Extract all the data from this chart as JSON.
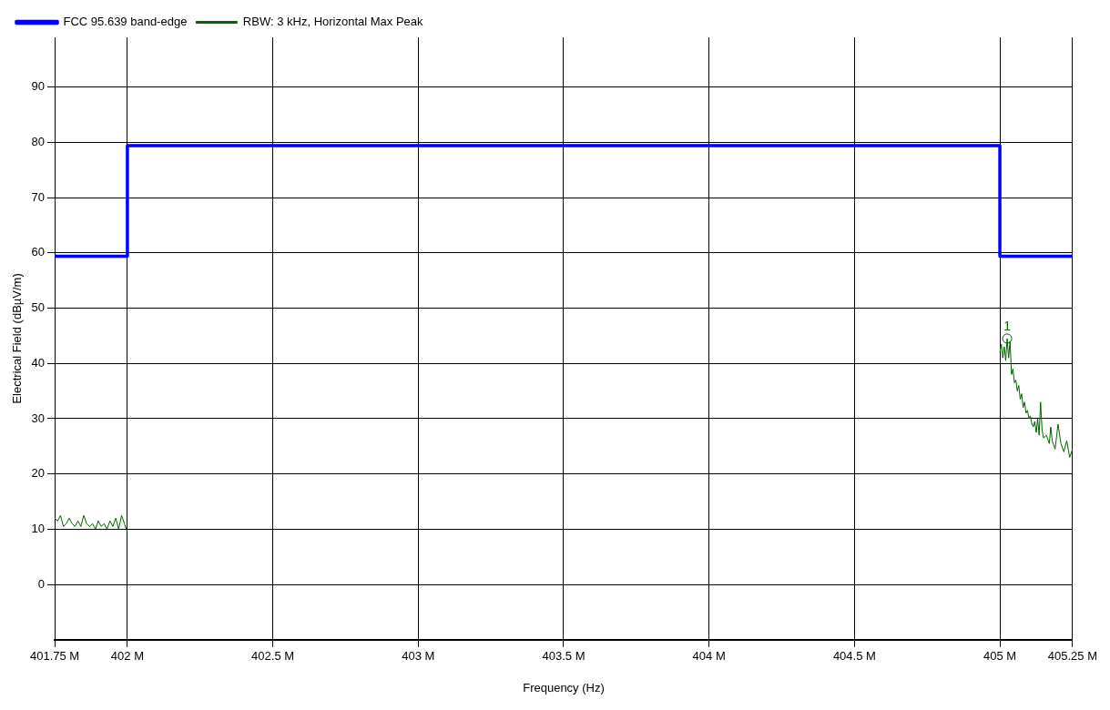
{
  "chart_data": {
    "type": "line",
    "xlabel": "Frequency (Hz)",
    "ylabel": "Electrical Field (dBµV/m)",
    "xlim": [
      401.75,
      405.25
    ],
    "xticks": [
      {
        "value": 401.75,
        "label": "401.75 M"
      },
      {
        "value": 402,
        "label": "402 M"
      },
      {
        "value": 402.5,
        "label": "402.5 M"
      },
      {
        "value": 403,
        "label": "403 M"
      },
      {
        "value": 403.5,
        "label": "403.5 M"
      },
      {
        "value": 404,
        "label": "404 M"
      },
      {
        "value": 404.5,
        "label": "404.5 M"
      },
      {
        "value": 405,
        "label": "405 M"
      },
      {
        "value": 405.25,
        "label": "405.25 M"
      }
    ],
    "ylim": [
      -10,
      99
    ],
    "yticks": [
      0,
      10,
      20,
      30,
      40,
      50,
      60,
      70,
      80,
      90
    ],
    "grid": true,
    "legend": "top left",
    "marker": "none",
    "annotations": [
      {
        "text": "1",
        "x": 405.025,
        "y": 44.5
      }
    ],
    "series": [
      {
        "name": "FCC 95.639 band-edge",
        "type": "step",
        "color": "#0000ff",
        "x": [
          401.75,
          402,
          405,
          405.25
        ],
        "values": [
          59.4,
          79.4,
          59.4,
          59.4
        ]
      },
      {
        "name": "RBW: 3 kHz, Horizontal Max Peak",
        "type": "line",
        "color": "#006400",
        "x": [
          401.75,
          401.76,
          401.77,
          401.78,
          401.79,
          401.8,
          401.81,
          401.82,
          401.83,
          401.84,
          401.85,
          401.86,
          401.87,
          401.88,
          401.89,
          401.9,
          401.91,
          401.92,
          401.93,
          401.94,
          401.95,
          401.96,
          401.97,
          401.98,
          401.99,
          402,
          null,
          405,
          405.005,
          405.01,
          405.015,
          405.02,
          405.025,
          405.03,
          405.035,
          405.04,
          405.045,
          405.05,
          405.055,
          405.06,
          405.065,
          405.07,
          405.075,
          405.08,
          405.085,
          405.09,
          405.095,
          405.1,
          405.105,
          405.11,
          405.115,
          405.12,
          405.125,
          405.13,
          405.135,
          405.14,
          405.145,
          405.15,
          405.16,
          405.17,
          405.175,
          405.18,
          405.19,
          405.2,
          405.21,
          405.22,
          405.23,
          405.24,
          405.25
        ],
        "values": [
          12,
          11.5,
          12.5,
          10.5,
          11,
          12,
          11,
          10.5,
          11.5,
          10.5,
          12.5,
          11,
          10.5,
          11,
          10,
          11.5,
          10.5,
          11,
          10,
          11.5,
          10.5,
          12,
          10,
          12.5,
          11,
          9.5,
          null,
          42,
          43.5,
          41,
          43,
          40.5,
          44.5,
          41,
          44,
          38,
          39,
          36.5,
          37,
          35,
          36,
          33.5,
          34.5,
          32,
          33,
          31,
          31.5,
          30,
          30.5,
          29,
          28.5,
          29.5,
          27.5,
          30,
          27,
          33,
          28,
          26.5,
          27,
          25.5,
          28.5,
          26,
          24.5,
          29,
          25.5,
          24,
          26,
          23,
          24.5
        ]
      }
    ]
  }
}
